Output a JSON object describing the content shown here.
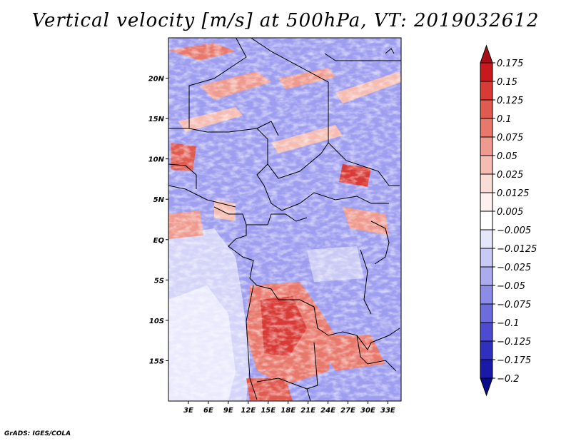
{
  "title": "Vertical velocity [m/s] at 500hPa, VT: 2019032612",
  "credit": "GrADS: IGES/COLA",
  "map": {
    "lon_range": [
      0,
      35
    ],
    "lat_range": [
      -20,
      25
    ],
    "lat_ticks": [
      {
        "value": 20,
        "label": "20N"
      },
      {
        "value": 15,
        "label": "15N"
      },
      {
        "value": 10,
        "label": "10N"
      },
      {
        "value": 5,
        "label": "5N"
      },
      {
        "value": 0,
        "label": "EQ"
      },
      {
        "value": -5,
        "label": "5S"
      },
      {
        "value": -10,
        "label": "10S"
      },
      {
        "value": -15,
        "label": "15S"
      }
    ],
    "lon_ticks": [
      {
        "value": 3,
        "label": "3E"
      },
      {
        "value": 6,
        "label": "6E"
      },
      {
        "value": 9,
        "label": "9E"
      },
      {
        "value": 12,
        "label": "12E"
      },
      {
        "value": 15,
        "label": "15E"
      },
      {
        "value": 18,
        "label": "18E"
      },
      {
        "value": 21,
        "label": "21E"
      },
      {
        "value": 24,
        "label": "24E"
      },
      {
        "value": 27,
        "label": "27E"
      },
      {
        "value": 30,
        "label": "30E"
      },
      {
        "value": 33,
        "label": "33E"
      }
    ]
  },
  "colorbar": {
    "levels": [
      "0.175",
      "0.15",
      "0.125",
      "0.1",
      "0.075",
      "0.05",
      "0.025",
      "0.0125",
      "0.005",
      "−0.005",
      "−0.0125",
      "−0.025",
      "−0.05",
      "−0.075",
      "−0.1",
      "−0.125",
      "−0.175",
      "−0.2"
    ],
    "colors": [
      "#a50f15",
      "#c9181e",
      "#d83a35",
      "#e05a50",
      "#e8786c",
      "#ef9a8e",
      "#f5bcb2",
      "#fadcd6",
      "#fdf0ee",
      "#ffffff",
      "#e6e6fb",
      "#c9c9f5",
      "#ababee",
      "#8c8ce6",
      "#6c6cdc",
      "#4c4cd0",
      "#3030bf",
      "#1a1aa8",
      "#0a0a8c"
    ]
  }
}
